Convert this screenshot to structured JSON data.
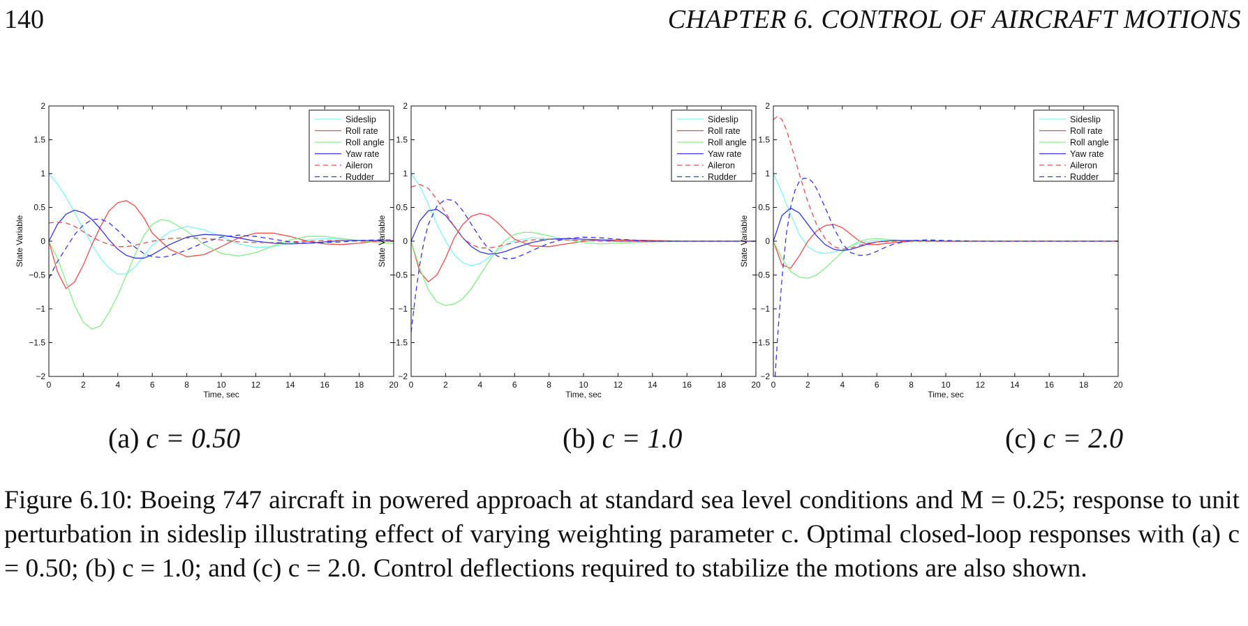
{
  "header": {
    "page_number": "140",
    "chapter": "CHAPTER 6.  CONTROL OF AIRCRAFT MOTIONS"
  },
  "subcaptions": [
    {
      "label": "(a)",
      "equation": "c = 0.50"
    },
    {
      "label": "(b)",
      "equation": "c = 1.0"
    },
    {
      "label": "(c)",
      "equation": "c = 2.0"
    }
  ],
  "caption": {
    "text": "Figure 6.10: Boeing 747 aircraft in powered approach at standard sea level conditions and M = 0.25; response to unit perturbation in sideslip illustrating effect of varying weighting parameter c. Optimal closed-loop responses with (a) c = 0.50; (b) c = 1.0; and (c) c = 2.0. Control deflections required to stabilize the motions are also shown."
  },
  "series_colors": {
    "Sideslip": "#7ff5f5",
    "Roll rate": "#ee4b4b",
    "Roll angle": "#86ee86",
    "Yaw rate": "#3535e8",
    "Aileron": "#ee4b4b",
    "Rudder": "#3535e8"
  },
  "chart_data": [
    {
      "type": "line",
      "xlabel": "Time, sec",
      "ylabel": "State Variable",
      "xlim": [
        0,
        20
      ],
      "ylim": [
        -2,
        2
      ],
      "xticks": [
        0,
        2,
        4,
        6,
        8,
        10,
        12,
        14,
        16,
        18,
        20
      ],
      "yticks": [
        -2,
        -1.5,
        -1,
        -0.5,
        0,
        0.5,
        1,
        1.5,
        2
      ],
      "legend_position": "top-right",
      "series": [
        {
          "name": "Sideslip",
          "style": "solid",
          "x": [
            0,
            0.5,
            1,
            1.5,
            2,
            2.5,
            3,
            3.5,
            4,
            4.5,
            5,
            5.5,
            6,
            7,
            8,
            9,
            10,
            11,
            12,
            13,
            14,
            15,
            16,
            17,
            18,
            19,
            20
          ],
          "y": [
            1.0,
            0.85,
            0.65,
            0.42,
            0.18,
            -0.05,
            -0.25,
            -0.4,
            -0.49,
            -0.48,
            -0.38,
            -0.22,
            -0.06,
            0.14,
            0.22,
            0.17,
            0.07,
            -0.04,
            -0.09,
            -0.08,
            -0.03,
            0.02,
            0.04,
            0.03,
            0.01,
            0,
            0
          ]
        },
        {
          "name": "Roll rate",
          "style": "solid",
          "x": [
            0,
            0.5,
            1,
            1.5,
            2,
            2.5,
            3,
            3.5,
            4,
            4.5,
            5,
            5.5,
            6,
            7,
            8,
            9,
            10,
            11,
            12,
            13,
            14,
            15,
            16,
            17,
            18,
            19,
            20
          ],
          "y": [
            0,
            -0.45,
            -0.7,
            -0.6,
            -0.35,
            -0.05,
            0.22,
            0.45,
            0.57,
            0.6,
            0.52,
            0.35,
            0.12,
            -0.12,
            -0.23,
            -0.2,
            -0.08,
            0.05,
            0.12,
            0.12,
            0.07,
            0,
            -0.04,
            -0.05,
            -0.03,
            0,
            0.01
          ]
        },
        {
          "name": "Roll angle",
          "style": "solid",
          "x": [
            0,
            0.5,
            1,
            1.5,
            2,
            2.5,
            3,
            3.5,
            4,
            4.5,
            5,
            5.5,
            6,
            6.5,
            7,
            8,
            9,
            10,
            11,
            12,
            13,
            14,
            15,
            16,
            17,
            18,
            19,
            20
          ],
          "y": [
            0,
            -0.25,
            -0.6,
            -0.95,
            -1.2,
            -1.3,
            -1.25,
            -1.05,
            -0.8,
            -0.5,
            -0.2,
            0.08,
            0.25,
            0.32,
            0.3,
            0.15,
            -0.05,
            -0.18,
            -0.22,
            -0.17,
            -0.07,
            0.02,
            0.07,
            0.07,
            0.04,
            0.01,
            -0.02,
            -0.03
          ]
        },
        {
          "name": "Yaw rate",
          "style": "solid",
          "x": [
            0,
            0.5,
            1,
            1.5,
            2,
            2.5,
            3,
            3.5,
            4,
            4.5,
            5,
            5.5,
            6,
            7,
            8,
            9,
            10,
            11,
            12,
            13,
            14,
            15,
            16,
            17,
            18,
            19,
            20
          ],
          "y": [
            0,
            0.25,
            0.4,
            0.46,
            0.42,
            0.32,
            0.18,
            0.02,
            -0.12,
            -0.21,
            -0.25,
            -0.25,
            -0.2,
            -0.05,
            0.06,
            0.1,
            0.09,
            0.05,
            0,
            -0.03,
            -0.04,
            -0.03,
            -0.01,
            0.01,
            0.01,
            0.01,
            0
          ]
        },
        {
          "name": "Aileron",
          "style": "dashed",
          "x": [
            0,
            0.5,
            1,
            1.5,
            2,
            2.5,
            3,
            3.5,
            4,
            4.5,
            5,
            5.5,
            6,
            7,
            8,
            9,
            10,
            11,
            12,
            13,
            14,
            15,
            16,
            17,
            18,
            19,
            20
          ],
          "y": [
            0.27,
            0.28,
            0.27,
            0.22,
            0.14,
            0.06,
            0,
            -0.05,
            -0.08,
            -0.08,
            -0.06,
            -0.03,
            0,
            0.04,
            0.05,
            0.04,
            0.02,
            -0.01,
            -0.02,
            -0.02,
            -0.01,
            0,
            0.01,
            0.01,
            0,
            0,
            0
          ]
        },
        {
          "name": "Rudder",
          "style": "dashed",
          "x": [
            0,
            0.5,
            1,
            1.5,
            2,
            2.5,
            3,
            3.5,
            4,
            4.5,
            5,
            5.5,
            6,
            6.5,
            7,
            8,
            9,
            10,
            11,
            12,
            13,
            14,
            15,
            16,
            17,
            18,
            19,
            20
          ],
          "y": [
            -0.55,
            -0.3,
            -0.1,
            0.1,
            0.24,
            0.32,
            0.33,
            0.27,
            0.16,
            0.03,
            -0.09,
            -0.18,
            -0.23,
            -0.24,
            -0.22,
            -0.13,
            -0.02,
            0.06,
            0.09,
            0.07,
            0.03,
            -0.01,
            -0.03,
            -0.02,
            -0.01,
            0.01,
            0.02,
            0.02
          ]
        }
      ]
    },
    {
      "type": "line",
      "xlabel": "Time, sec",
      "ylabel": "State Variable",
      "xlim": [
        0,
        20
      ],
      "ylim": [
        -2,
        2
      ],
      "xticks": [
        0,
        2,
        4,
        6,
        8,
        10,
        12,
        14,
        16,
        18,
        20
      ],
      "yticks": [
        -2,
        -1.5,
        -1,
        -0.5,
        0,
        0.5,
        1,
        1.5,
        2
      ],
      "legend_position": "top-right",
      "series": [
        {
          "name": "Sideslip",
          "style": "solid",
          "x": [
            0,
            0.5,
            1,
            1.5,
            2,
            2.5,
            3,
            3.5,
            4,
            4.5,
            5,
            5.5,
            6,
            7,
            8,
            9,
            10,
            11,
            12,
            14,
            16,
            18,
            20
          ],
          "y": [
            1.0,
            0.82,
            0.55,
            0.25,
            0,
            -0.2,
            -0.32,
            -0.36,
            -0.33,
            -0.24,
            -0.14,
            -0.05,
            0.01,
            0.05,
            0.04,
            0.02,
            0.01,
            0,
            0,
            0,
            0,
            0,
            0
          ]
        },
        {
          "name": "Roll rate",
          "style": "solid",
          "x": [
            0,
            0.5,
            1,
            1.5,
            2,
            2.5,
            3,
            3.5,
            4,
            4.5,
            5,
            5.5,
            6,
            7,
            8,
            9,
            10,
            11,
            12,
            14,
            16,
            18,
            20
          ],
          "y": [
            0,
            -0.45,
            -0.6,
            -0.5,
            -0.25,
            0.05,
            0.25,
            0.37,
            0.41,
            0.38,
            0.28,
            0.15,
            0.03,
            -0.07,
            -0.08,
            -0.04,
            0,
            0.02,
            0.02,
            0.01,
            0,
            0,
            0
          ]
        },
        {
          "name": "Roll angle",
          "style": "solid",
          "x": [
            0,
            0.5,
            1,
            1.5,
            2,
            2.5,
            3,
            3.5,
            4,
            4.5,
            5,
            5.5,
            6,
            6.5,
            7,
            8,
            9,
            10,
            11,
            12,
            14,
            16,
            18,
            20
          ],
          "y": [
            0,
            -0.4,
            -0.72,
            -0.9,
            -0.95,
            -0.93,
            -0.85,
            -0.7,
            -0.5,
            -0.3,
            -0.12,
            0.02,
            0.1,
            0.13,
            0.13,
            0.08,
            0.02,
            -0.02,
            -0.04,
            -0.03,
            -0.01,
            0,
            0,
            0
          ]
        },
        {
          "name": "Yaw rate",
          "style": "solid",
          "x": [
            0,
            0.5,
            1,
            1.5,
            2,
            2.5,
            3,
            3.5,
            4,
            4.5,
            5,
            5.5,
            6,
            7,
            8,
            9,
            10,
            11,
            12,
            14,
            16,
            18,
            20
          ],
          "y": [
            0,
            0.3,
            0.45,
            0.47,
            0.38,
            0.22,
            0.05,
            -0.08,
            -0.16,
            -0.19,
            -0.18,
            -0.15,
            -0.1,
            -0.02,
            0.03,
            0.04,
            0.03,
            0.02,
            0,
            0,
            0,
            0,
            0
          ]
        },
        {
          "name": "Aileron",
          "style": "dashed",
          "x": [
            0,
            0.5,
            1,
            1.5,
            2,
            2.5,
            3,
            3.5,
            4,
            4.5,
            5,
            5.5,
            6,
            7,
            8,
            9,
            10,
            11,
            12,
            14,
            16,
            18,
            20
          ],
          "y": [
            0.8,
            0.84,
            0.78,
            0.62,
            0.42,
            0.22,
            0.05,
            -0.05,
            -0.1,
            -0.1,
            -0.08,
            -0.05,
            -0.02,
            0.02,
            0.03,
            0.02,
            0.01,
            0,
            0,
            0,
            0,
            0,
            0
          ]
        },
        {
          "name": "Rudder",
          "style": "dashed",
          "x": [
            0,
            0.25,
            0.5,
            0.75,
            1,
            1.5,
            2,
            2.5,
            3,
            3.5,
            4,
            4.5,
            5,
            5.5,
            6,
            6.5,
            7,
            8,
            9,
            10,
            11,
            12,
            14,
            16,
            18,
            20
          ],
          "y": [
            -1.35,
            -0.8,
            -0.35,
            0,
            0.25,
            0.52,
            0.62,
            0.6,
            0.45,
            0.25,
            0.05,
            -0.12,
            -0.22,
            -0.26,
            -0.25,
            -0.2,
            -0.14,
            -0.03,
            0.04,
            0.06,
            0.05,
            0.03,
            0,
            0,
            0,
            0
          ]
        }
      ]
    },
    {
      "type": "line",
      "xlabel": "Time, sec",
      "ylabel": "State Variable",
      "xlim": [
        0,
        20
      ],
      "ylim": [
        -2,
        2
      ],
      "xticks": [
        0,
        2,
        4,
        6,
        8,
        10,
        12,
        14,
        16,
        18,
        20
      ],
      "yticks": [
        -2,
        -1.5,
        -1,
        -0.5,
        0,
        0.5,
        1,
        1.5,
        2
      ],
      "legend_position": "top-right",
      "series": [
        {
          "name": "Sideslip",
          "style": "solid",
          "x": [
            0,
            0.5,
            1,
            1.5,
            2,
            2.5,
            3,
            3.5,
            4,
            4.5,
            5,
            5.5,
            6,
            7,
            8,
            10,
            12,
            14,
            16,
            18,
            20
          ],
          "y": [
            1.0,
            0.72,
            0.4,
            0.1,
            -0.08,
            -0.16,
            -0.18,
            -0.16,
            -0.12,
            -0.07,
            -0.03,
            0,
            0.01,
            0.01,
            0,
            0,
            0,
            0,
            0,
            0,
            0
          ]
        },
        {
          "name": "Roll rate",
          "style": "solid",
          "x": [
            0,
            0.5,
            1,
            1.5,
            2,
            2.5,
            3,
            3.5,
            4,
            4.5,
            5,
            5.5,
            6,
            7,
            8,
            10,
            12,
            14,
            16,
            18,
            20
          ],
          "y": [
            0,
            -0.35,
            -0.4,
            -0.22,
            0,
            0.15,
            0.23,
            0.25,
            0.2,
            0.1,
            0,
            -0.05,
            -0.05,
            -0.02,
            0,
            0,
            0,
            0,
            0,
            0,
            0
          ]
        },
        {
          "name": "Roll angle",
          "style": "solid",
          "x": [
            0,
            0.5,
            1,
            1.5,
            2,
            2.5,
            3,
            3.5,
            4,
            4.5,
            5,
            5.5,
            6,
            7,
            8,
            10,
            12,
            14,
            16,
            18,
            20
          ],
          "y": [
            0,
            -0.25,
            -0.45,
            -0.53,
            -0.55,
            -0.5,
            -0.4,
            -0.28,
            -0.16,
            -0.07,
            0,
            0.03,
            0.04,
            0.02,
            0,
            0,
            0,
            0,
            0,
            0,
            0
          ]
        },
        {
          "name": "Yaw rate",
          "style": "solid",
          "x": [
            0,
            0.5,
            1,
            1.5,
            2,
            2.5,
            3,
            3.5,
            4,
            4.5,
            5,
            5.5,
            6,
            7,
            8,
            10,
            12,
            14,
            16,
            18,
            20
          ],
          "y": [
            0,
            0.38,
            0.49,
            0.42,
            0.25,
            0.08,
            -0.05,
            -0.12,
            -0.14,
            -0.12,
            -0.08,
            -0.04,
            -0.01,
            0.01,
            0.01,
            0,
            0,
            0,
            0,
            0,
            0
          ]
        },
        {
          "name": "Aileron",
          "style": "dashed",
          "x": [
            0,
            0.25,
            0.5,
            0.75,
            1,
            1.5,
            2,
            2.5,
            3,
            3.5,
            4,
            4.5,
            5,
            5.5,
            6,
            7,
            8,
            10,
            12,
            14,
            16,
            18,
            20
          ],
          "y": [
            1.8,
            1.85,
            1.8,
            1.65,
            1.45,
            1.0,
            0.58,
            0.25,
            0.04,
            -0.08,
            -0.12,
            -0.1,
            -0.06,
            -0.03,
            -0.01,
            0,
            0,
            0,
            0,
            0,
            0,
            0,
            0
          ]
        },
        {
          "name": "Rudder",
          "style": "dashed",
          "x": [
            0.1,
            0.25,
            0.5,
            0.75,
            1,
            1.25,
            1.5,
            1.75,
            2,
            2.25,
            2.5,
            3,
            3.5,
            4,
            4.5,
            5,
            5.5,
            6,
            6.5,
            7,
            8,
            9,
            10,
            12,
            14,
            16,
            18,
            20
          ],
          "y": [
            -2.0,
            -1.4,
            -0.55,
            0.1,
            0.5,
            0.75,
            0.88,
            0.93,
            0.93,
            0.88,
            0.78,
            0.5,
            0.2,
            -0.04,
            -0.17,
            -0.21,
            -0.2,
            -0.15,
            -0.09,
            -0.04,
            0.01,
            0.02,
            0.01,
            0,
            0,
            0,
            0,
            0
          ]
        }
      ]
    }
  ]
}
